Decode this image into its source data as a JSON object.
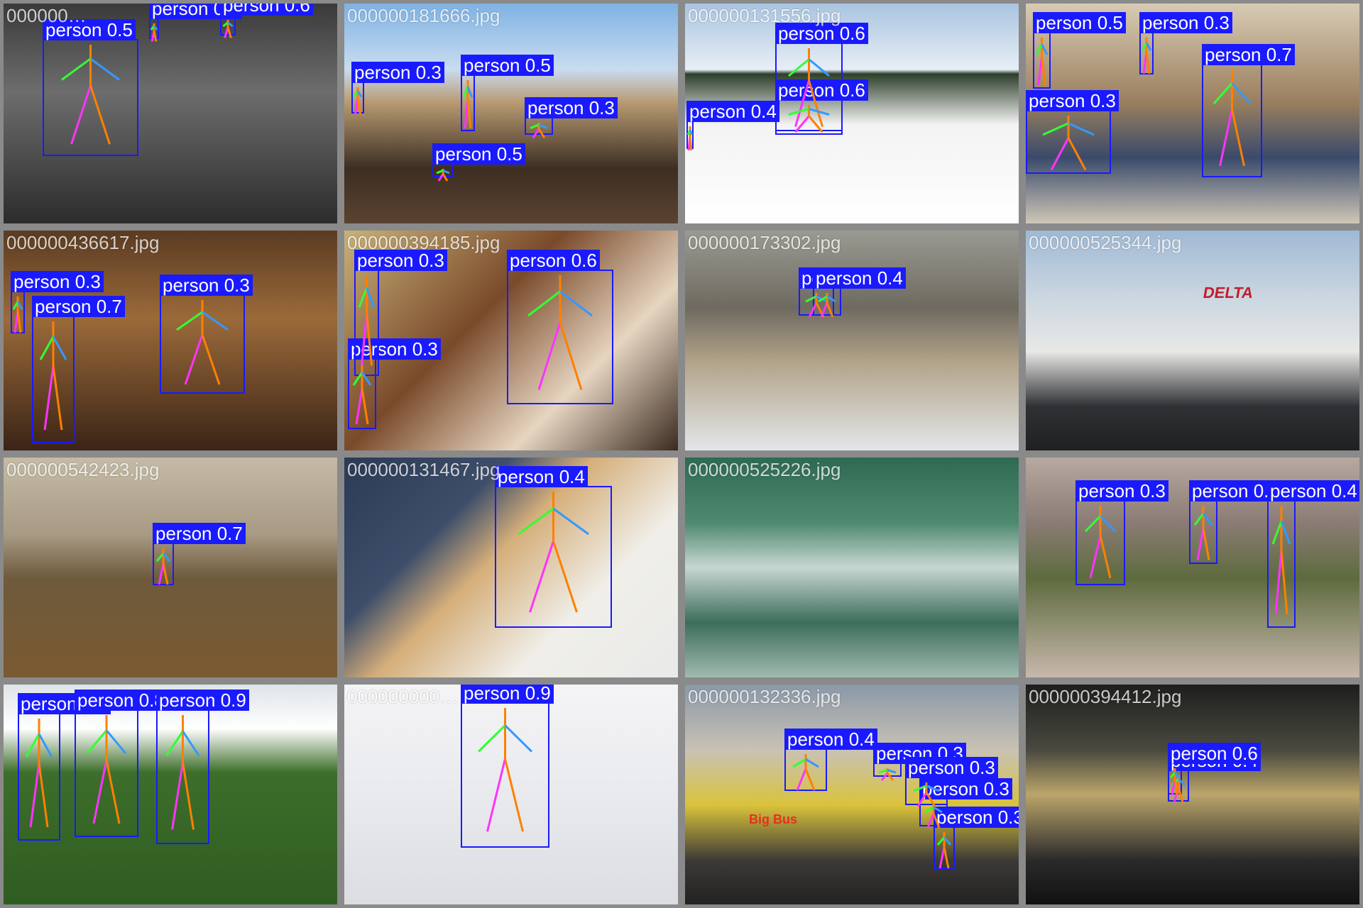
{
  "colors": {
    "box": "#1a1aff",
    "limb_orange": "#ff8000",
    "limb_green": "#33ff33",
    "limb_blue": "#3399ff",
    "limb_pink": "#ff33ff"
  },
  "tiles": [
    {
      "name": "tile-1",
      "filename": "000000…",
      "scene": "grayscale plaza, man sitting on ledge",
      "dets": [
        [
          "person",
          "0.5"
        ],
        [
          "person",
          "0.3"
        ],
        [
          "person",
          "0.6"
        ]
      ]
    },
    {
      "name": "tile-2",
      "filename": "000000181666.jpg",
      "scene": "desert herd of goats with herders",
      "dets": [
        [
          "person",
          "0.3"
        ],
        [
          "person",
          "0.5"
        ],
        [
          "person",
          "0.3"
        ],
        [
          "person",
          "0.5"
        ]
      ]
    },
    {
      "name": "tile-3",
      "filename": "000000131556.jpg",
      "scene": "snowboarder on rail",
      "dets": [
        [
          "person",
          "0.6"
        ],
        [
          "person",
          "0.6"
        ],
        [
          "person",
          "0.4"
        ]
      ]
    },
    {
      "name": "tile-4",
      "filename": "",
      "scene": "classroom with students",
      "dets": [
        [
          "person",
          "0.5"
        ],
        [
          "person",
          "0.3"
        ],
        [
          "person",
          "0.3"
        ],
        [
          "person",
          "0.7"
        ]
      ]
    },
    {
      "name": "tile-5",
      "filename": "000000436617.jpg",
      "scene": "group dining at long table",
      "dets": [
        [
          "person",
          "0.3"
        ],
        [
          "person",
          "0.7"
        ],
        [
          "person",
          "0.3"
        ]
      ]
    },
    {
      "name": "tile-6",
      "filename": "000000394185.jpg",
      "scene": "two women laughing close-up",
      "dets": [
        [
          "person",
          "0.3"
        ],
        [
          "person",
          "0.6"
        ],
        [
          "person",
          "0.3"
        ]
      ]
    },
    {
      "name": "tile-7",
      "filename": "000000173302.jpg",
      "scene": "empty diner with stools",
      "dets": [
        [
          "person",
          "0.3"
        ],
        [
          "person",
          "0.4"
        ]
      ]
    },
    {
      "name": "tile-8",
      "filename": "000000525344.jpg",
      "scene": "Delta airplane at airport",
      "dets": [],
      "brand": "DELTA"
    },
    {
      "name": "tile-9",
      "filename": "000000542423.jpg",
      "scene": "person near bench in park",
      "dets": [
        [
          "person",
          "0.7"
        ]
      ]
    },
    {
      "name": "tile-10",
      "filename": "000000131467.jpg",
      "scene": "pita sandwich in paper",
      "dets": [
        [
          "person",
          "0.4"
        ]
      ]
    },
    {
      "name": "tile-11",
      "filename": "000000525226.jpg",
      "scene": "surfer riding wave",
      "dets": []
    },
    {
      "name": "tile-12",
      "filename": "",
      "scene": "man helping injured person",
      "dets": [
        [
          "person",
          "0.3"
        ],
        [
          "person",
          "0.6"
        ],
        [
          "person",
          "0.4"
        ]
      ]
    },
    {
      "name": "tile-13",
      "filename": "",
      "scene": "soccer match on grass",
      "dets": [
        [
          "person",
          "0.3"
        ],
        [
          "person",
          "0.8"
        ],
        [
          "person",
          "0.9"
        ]
      ]
    },
    {
      "name": "tile-14",
      "filename": "000000000…",
      "scene": "skier on snow slope",
      "dets": [
        [
          "person",
          "0.9"
        ]
      ]
    },
    {
      "name": "tile-15",
      "filename": "000000132336.jpg",
      "scene": "city street with Big Bus",
      "dets": [
        [
          "person",
          "0.4"
        ],
        [
          "person",
          "0.3"
        ],
        [
          "person",
          "0.3"
        ],
        [
          "person",
          "0.3"
        ],
        [
          "person",
          "0.3"
        ]
      ],
      "brand": "Big Bus"
    },
    {
      "name": "tile-16",
      "filename": "000000394412.jpg",
      "scene": "restaurant kitchen with cook",
      "dets": [
        [
          "person",
          "0.4"
        ],
        [
          "person",
          "0.6"
        ]
      ]
    }
  ]
}
